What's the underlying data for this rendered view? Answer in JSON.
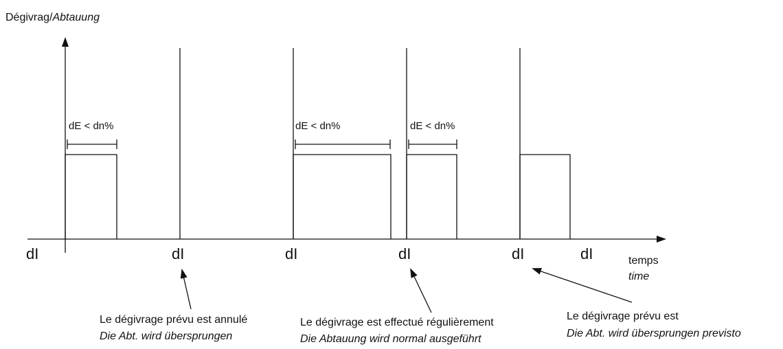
{
  "axis": {
    "y_label": "Dégivrag/",
    "y_label_italic": "Abtauung",
    "x_label": "temps",
    "x_label_italic": "time"
  },
  "intervals": [
    "dI",
    "dI",
    "dI",
    "dI",
    "dI",
    "dI"
  ],
  "durations": [
    "dE < dn%",
    "dE < dn%",
    "dE < dn%"
  ],
  "notes": [
    {
      "fr": "Le dégivrage prévu est annulé",
      "de": "Die Abt. wird übersprungen"
    },
    {
      "fr": "Le dégivrage est effectué régulièrement",
      "de": "Die Abtauung wird normal ausgeführt"
    },
    {
      "fr": "Le dégivrage prévu est",
      "de": "Die Abt. wird übersprungen previsto"
    }
  ]
}
